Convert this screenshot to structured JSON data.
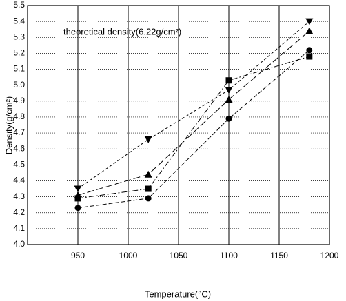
{
  "chart_data": {
    "type": "line",
    "annotation": "theoretical density(6.22g/cm²)",
    "xlabel": "Temperature(°C)",
    "ylabel": "Density(g/cm²)",
    "x": [
      950,
      1020,
      1100,
      1180
    ],
    "series": [
      {
        "marker": "circle",
        "color": "#000000",
        "dash": "6 3",
        "values": [
          4.23,
          4.29,
          4.79,
          5.22
        ]
      },
      {
        "marker": "square",
        "color": "#000000",
        "dash": "8 3 2 3",
        "values": [
          4.29,
          4.35,
          5.03,
          5.18
        ]
      },
      {
        "marker": "triangle",
        "color": "#000000",
        "dash": "10 4",
        "values": [
          4.31,
          4.44,
          4.91,
          5.34
        ]
      },
      {
        "marker": "triangle-down",
        "color": "#000000",
        "dash": "4 3",
        "values": [
          4.35,
          4.66,
          4.97,
          5.4
        ]
      }
    ],
    "xlim": [
      900,
      1200
    ],
    "xticks": [
      950,
      1000,
      1050,
      1100,
      1150,
      1200
    ],
    "ylim": [
      4.0,
      5.5
    ],
    "yticks": [
      {
        "value": 4.0,
        "label": "4.0"
      },
      4.1,
      4.2,
      4.3,
      4.4,
      4.5,
      4.6,
      4.7,
      4.8,
      4.9,
      {
        "value": 5.0,
        "label": "5.0"
      },
      5.1,
      5.2,
      5.3,
      5.4,
      5.5
    ],
    "grid": true
  }
}
